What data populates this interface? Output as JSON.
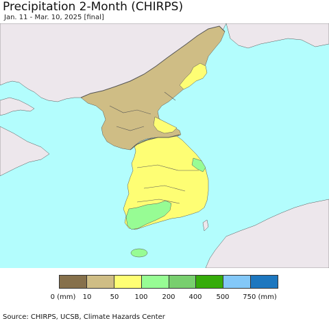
{
  "title": "Precipitation 2-Month (CHIRPS)",
  "subtitle": "Jan. 11 - Mar. 10, 2025 [final]",
  "legend": {
    "colors": [
      "#86704b",
      "#cfbd85",
      "#fefe74",
      "#97fc94",
      "#78cf6e",
      "#36ac0a",
      "#83c8f8",
      "#1d77bf"
    ],
    "labels": [
      "0 (mm)",
      "10",
      "50",
      "100",
      "200",
      "400",
      "500",
      "750 (mm)"
    ],
    "label_colors": [
      "#86704b",
      "#cfbd85",
      "#fefe74",
      "#97fc94",
      "#78cf6e",
      "#36ac0a",
      "#83c8f8",
      "#1d77bf"
    ]
  },
  "map": {
    "colors": {
      "sea": "#b3fdfd",
      "foreign_land": "#ede7ec",
      "north_korea": "#cfbd85",
      "south_korea": "#fefe74",
      "south_coast": "#97fc94",
      "jeju": "#97fc94",
      "borders": "#555555"
    }
  },
  "source": "Source: CHIRPS, UCSB, Climate Hazards Center"
}
